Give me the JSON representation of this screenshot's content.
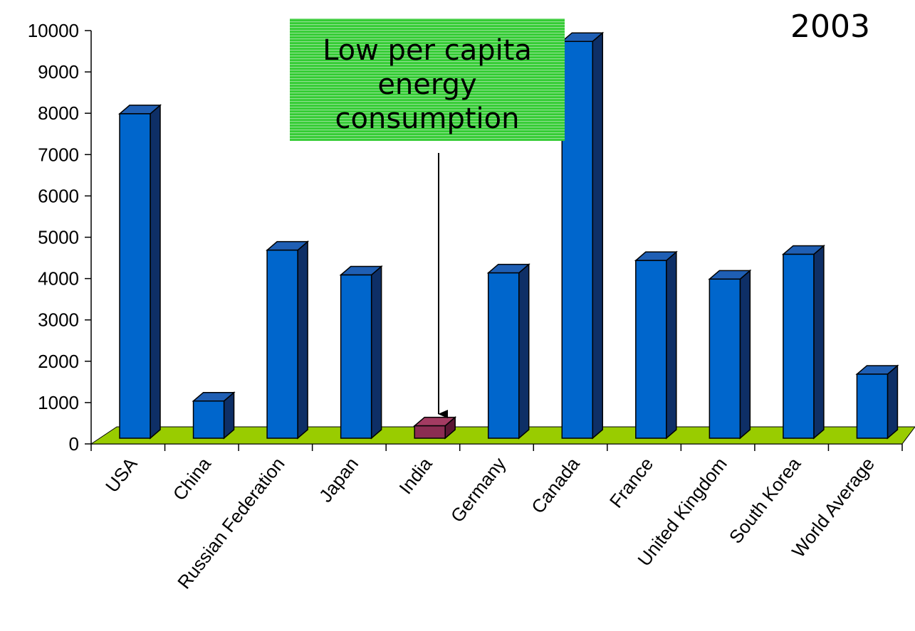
{
  "year_label": "2003",
  "annotation": {
    "lines": [
      "Low per capita",
      "energy",
      "consumption"
    ],
    "target_category": "India"
  },
  "colors": {
    "bar_front": "#0066cc",
    "bar_top": "#1f5fb4",
    "bar_side": "#0e2f66",
    "highlight_front": "#8b2d52",
    "highlight_top": "#a33b62",
    "highlight_side": "#5a1733",
    "floor": "#99cc00",
    "callout_bg": "#33cc33",
    "callout_stripe": "#8fe08f",
    "outline": "#000000"
  },
  "chart_data": {
    "type": "bar",
    "title": "2003",
    "xlabel": "",
    "ylabel": "",
    "ylim": [
      0,
      10000
    ],
    "yticks": [
      0,
      1000,
      2000,
      3000,
      4000,
      5000,
      6000,
      7000,
      8000,
      9000,
      10000
    ],
    "ytick_labels": [
      "0",
      "1000",
      "2000",
      "3000",
      "4000",
      "5000",
      "6000",
      "7000",
      "8000",
      "9000",
      "10000"
    ],
    "grid": false,
    "legend": "none",
    "categories": [
      "USA",
      "China",
      "Russian Federation",
      "Japan",
      "India",
      "Germany",
      "Canada",
      "France",
      "United Kingdom",
      "South Korea",
      "World Average"
    ],
    "values": [
      7850,
      900,
      4550,
      3950,
      300,
      4000,
      9600,
      4300,
      3850,
      4450,
      1550
    ],
    "highlight": "India"
  }
}
